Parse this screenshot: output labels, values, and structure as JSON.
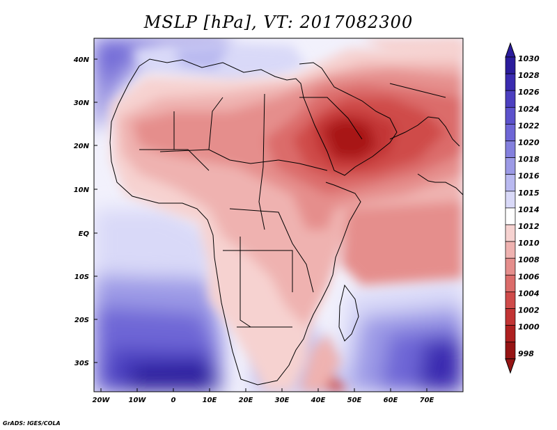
{
  "title": "MSLP [hPa], VT: 2017082300",
  "credit": "GrADS: IGES/COLA",
  "axes": {
    "lat_labels": [
      "40N",
      "30N",
      "20N",
      "10N",
      "EQ",
      "10S",
      "20S",
      "30S"
    ],
    "lon_labels": [
      "20W",
      "10W",
      "0",
      "10E",
      "20E",
      "30E",
      "40E",
      "50E",
      "60E",
      "70E"
    ]
  },
  "colorbar": {
    "levels": [
      "1030",
      "1028",
      "1026",
      "1024",
      "1022",
      "1020",
      "1018",
      "1016",
      "1015",
      "1014",
      "1012",
      "1010",
      "1008",
      "1006",
      "1004",
      "1002",
      "1000",
      "998"
    ],
    "colors": [
      "#2b1c9c",
      "#3a2bb0",
      "#4c3fc0",
      "#5c52cc",
      "#6e66d6",
      "#8480de",
      "#9c9ae6",
      "#b9b9f0",
      "#d9d9f8",
      "#ffffff",
      "#f6d2d0",
      "#efb2b0",
      "#e58e8c",
      "#db6c6a",
      "#cf4b4a",
      "#c23434",
      "#ae2020",
      "#961414"
    ]
  },
  "colors": {
    "background": "#ffffff",
    "ocean_low": "#ebecfb",
    "high_pressure": "#3a2bb0",
    "low_pressure": "#a81818"
  }
}
